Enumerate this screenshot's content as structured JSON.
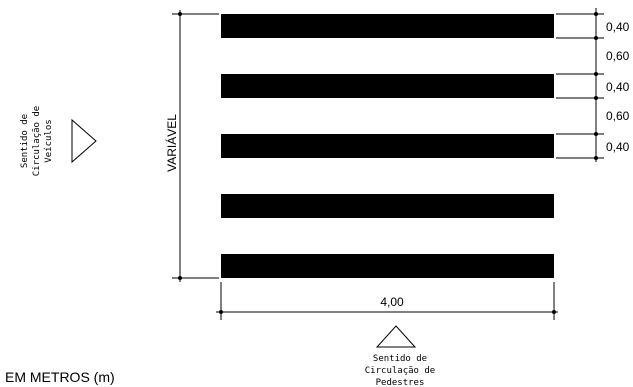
{
  "dimensions": {
    "stripe_widths": [
      "0,40",
      "0,40",
      "0,40"
    ],
    "stripe_gaps": [
      "0,60",
      "0,60"
    ],
    "variable_label": "VARIÁVEL",
    "horizontal_length": "4,00"
  },
  "vehicle_flow": {
    "line1": "Sentido de",
    "line2": "Circulação de",
    "line3": "Veículos"
  },
  "pedestrian_flow": {
    "line1": "Sentido de",
    "line2": "Circulação de",
    "line3": "Pedestres"
  },
  "units_note": "EM METROS (m)",
  "stripe_count": 5,
  "colors": {
    "stripe": "#000000",
    "background": "#ffffff"
  }
}
